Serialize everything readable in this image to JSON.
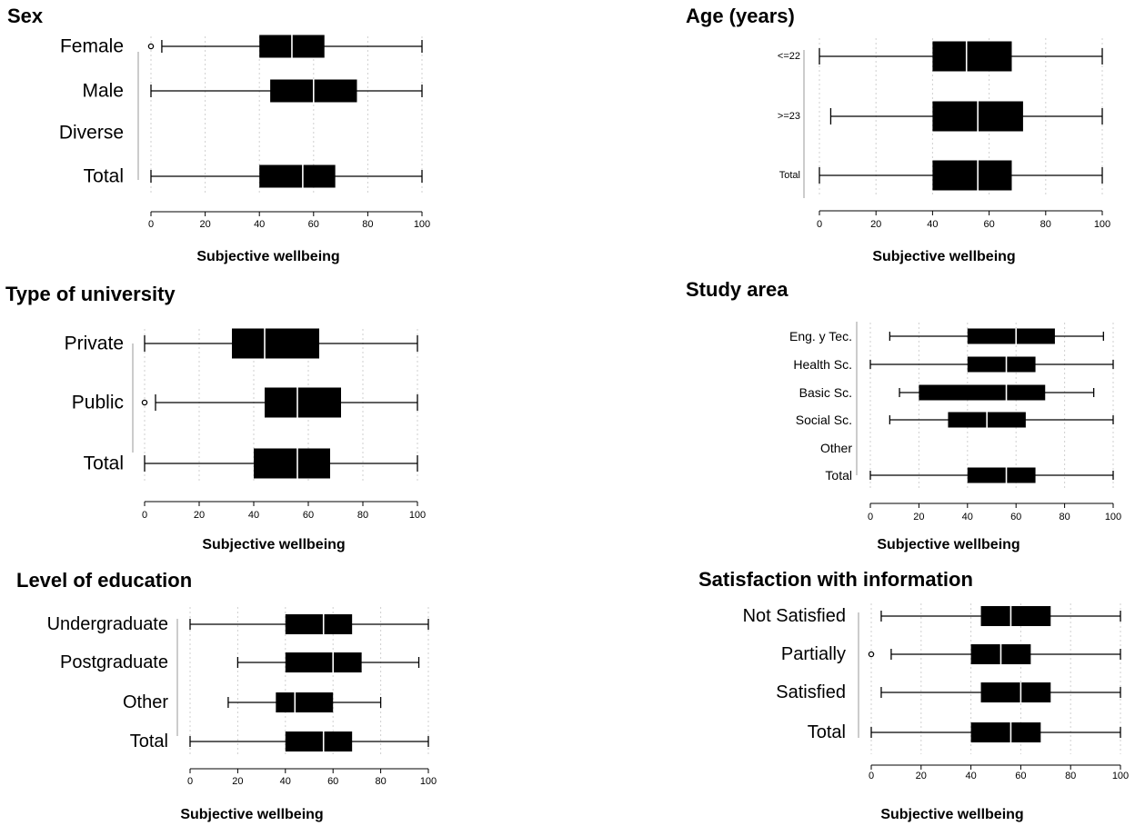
{
  "chart_data": [
    {
      "type": "boxplot",
      "title": "Sex",
      "xlabel": "Subjective wellbeing",
      "xlim": [
        0,
        100
      ],
      "xticks": [
        0,
        20,
        40,
        60,
        80,
        100
      ],
      "categories": [
        {
          "label": "Female",
          "min": 4,
          "q1": 40,
          "median": 52,
          "q3": 64,
          "max": 100,
          "outliers": [
            0
          ]
        },
        {
          "label": "Male",
          "min": 0,
          "q1": 44,
          "median": 60,
          "q3": 76,
          "max": 100,
          "outliers": []
        },
        {
          "label": "Diverse",
          "empty": true
        },
        {
          "label": "Total",
          "min": 0,
          "q1": 40,
          "median": 56,
          "q3": 68,
          "max": 100,
          "outliers": []
        }
      ]
    },
    {
      "type": "boxplot",
      "title": "Age (years)",
      "xlabel": "Subjective wellbeing",
      "xlim": [
        0,
        100
      ],
      "xticks": [
        0,
        20,
        40,
        60,
        80,
        100
      ],
      "categories": [
        {
          "label": "<=22",
          "min": 0,
          "q1": 40,
          "median": 52,
          "q3": 68,
          "max": 100,
          "outliers": []
        },
        {
          "label": ">=23",
          "min": 4,
          "q1": 40,
          "median": 56,
          "q3": 72,
          "max": 100,
          "outliers": []
        },
        {
          "label": "Total",
          "min": 0,
          "q1": 40,
          "median": 56,
          "q3": 68,
          "max": 100,
          "outliers": []
        }
      ]
    },
    {
      "type": "boxplot",
      "title": "Type of university",
      "xlabel": "Subjective wellbeing",
      "xlim": [
        0,
        100
      ],
      "xticks": [
        0,
        20,
        40,
        60,
        80,
        100
      ],
      "categories": [
        {
          "label": "Private",
          "min": 0,
          "q1": 32,
          "median": 44,
          "q3": 64,
          "max": 100,
          "outliers": []
        },
        {
          "label": "Public",
          "min": 4,
          "q1": 44,
          "median": 56,
          "q3": 72,
          "max": 100,
          "outliers": [
            0
          ]
        },
        {
          "label": "Total",
          "min": 0,
          "q1": 40,
          "median": 56,
          "q3": 68,
          "max": 100,
          "outliers": []
        }
      ]
    },
    {
      "type": "boxplot",
      "title": "Study area",
      "xlabel": "Subjective wellbeing",
      "xlim": [
        0,
        100
      ],
      "xticks": [
        0,
        20,
        40,
        60,
        80,
        100
      ],
      "categories": [
        {
          "label": "Eng. y Tec.",
          "min": 8,
          "q1": 40,
          "median": 60,
          "q3": 76,
          "max": 96,
          "outliers": []
        },
        {
          "label": "Health Sc.",
          "min": 0,
          "q1": 40,
          "median": 56,
          "q3": 68,
          "max": 100,
          "outliers": []
        },
        {
          "label": "Basic Sc.",
          "min": 12,
          "q1": 20,
          "median": 56,
          "q3": 72,
          "max": 92,
          "outliers": []
        },
        {
          "label": "Social Sc.",
          "min": 8,
          "q1": 32,
          "median": 48,
          "q3": 64,
          "max": 100,
          "outliers": []
        },
        {
          "label": "Other",
          "empty": true
        },
        {
          "label": "Total",
          "min": 0,
          "q1": 40,
          "median": 56,
          "q3": 68,
          "max": 100,
          "outliers": []
        }
      ]
    },
    {
      "type": "boxplot",
      "title": "Level of education",
      "xlabel": "Subjective wellbeing",
      "xlim": [
        0,
        100
      ],
      "xticks": [
        0,
        20,
        40,
        60,
        80,
        100
      ],
      "categories": [
        {
          "label": "Undergraduate",
          "min": 0,
          "q1": 40,
          "median": 56,
          "q3": 68,
          "max": 100,
          "outliers": []
        },
        {
          "label": "Postgraduate",
          "min": 20,
          "q1": 40,
          "median": 60,
          "q3": 72,
          "max": 96,
          "outliers": []
        },
        {
          "label": "Other",
          "min": 16,
          "q1": 36,
          "median": 44,
          "q3": 60,
          "max": 80,
          "outliers": []
        },
        {
          "label": "Total",
          "min": 0,
          "q1": 40,
          "median": 56,
          "q3": 68,
          "max": 100,
          "outliers": []
        }
      ]
    },
    {
      "type": "boxplot",
      "title": "Satisfaction with information",
      "xlabel": "Subjective wellbeing",
      "xlim": [
        0,
        100
      ],
      "xticks": [
        0,
        20,
        40,
        60,
        80,
        100
      ],
      "categories": [
        {
          "label": "Not Satisfied",
          "min": 4,
          "q1": 44,
          "median": 56,
          "q3": 72,
          "max": 100,
          "outliers": []
        },
        {
          "label": "Partially",
          "min": 8,
          "q1": 40,
          "median": 52,
          "q3": 64,
          "max": 100,
          "outliers": [
            0
          ]
        },
        {
          "label": "Satisfied",
          "min": 4,
          "q1": 44,
          "median": 60,
          "q3": 72,
          "max": 100,
          "outliers": []
        },
        {
          "label": "Total",
          "min": 0,
          "q1": 40,
          "median": 56,
          "q3": 68,
          "max": 100,
          "outliers": []
        }
      ]
    }
  ]
}
